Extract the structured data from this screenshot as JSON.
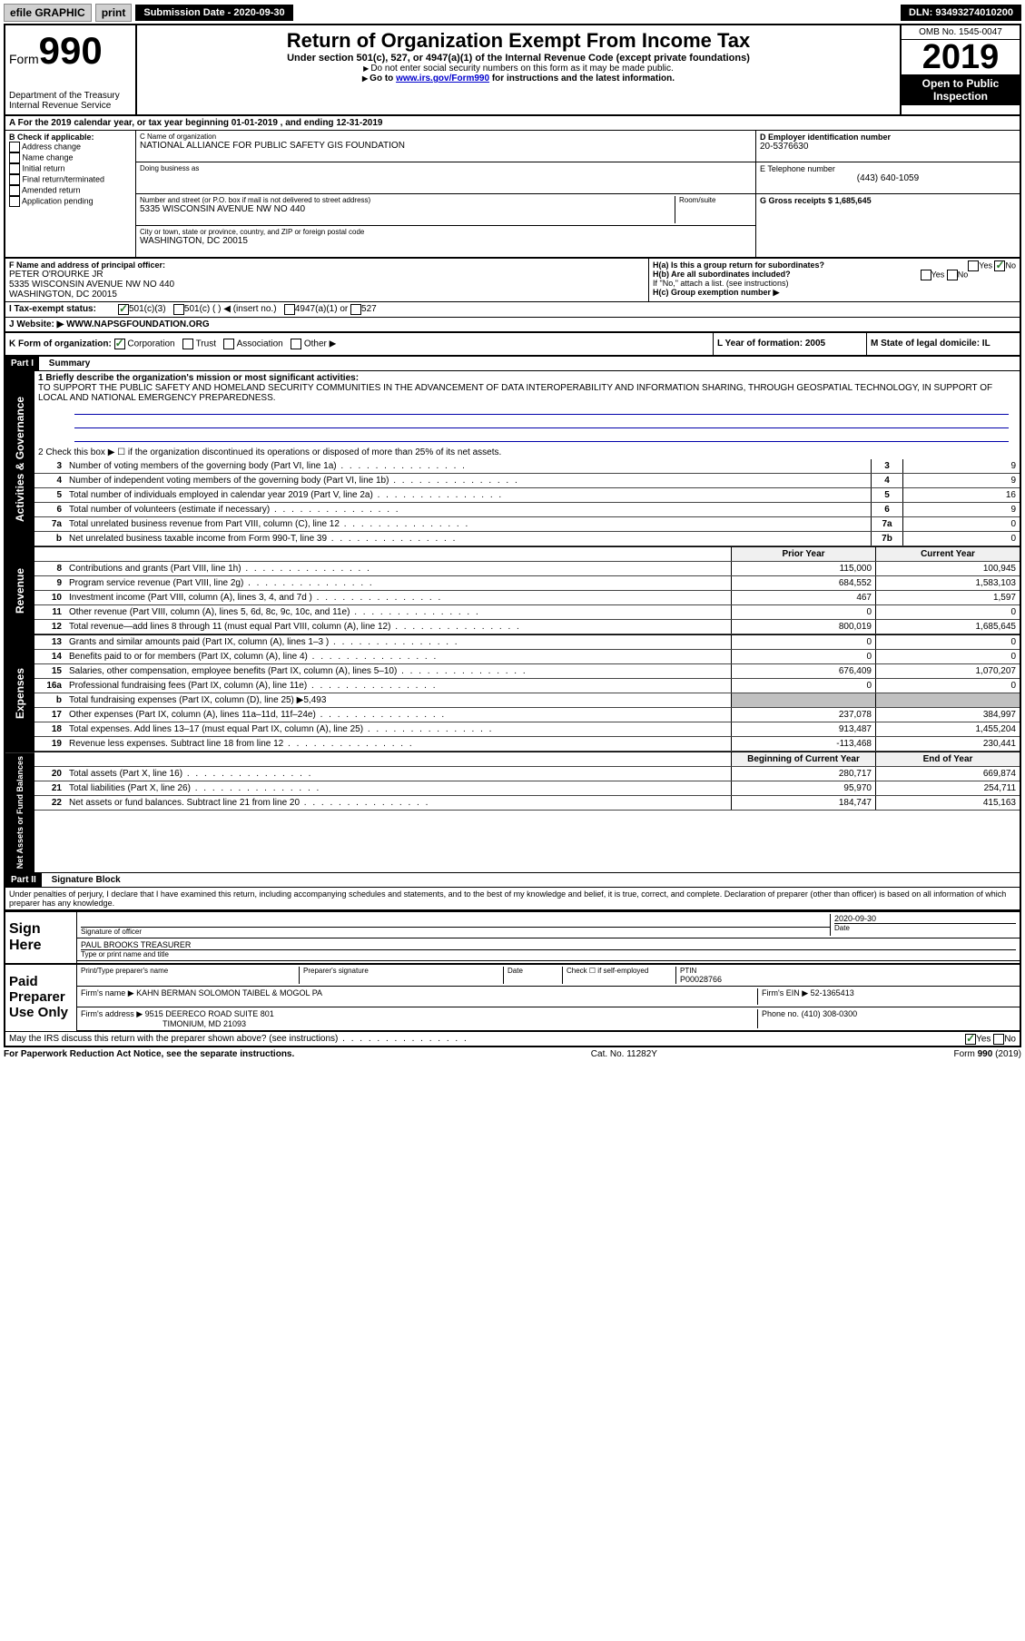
{
  "toolbar": {
    "efile": "efile GRAPHIC",
    "print": "print",
    "submission_label": "Submission Date - 2020-09-30",
    "dln_label": "DLN: 93493274010200"
  },
  "header": {
    "form_label": "Form",
    "form_number": "990",
    "dept": "Department of the Treasury\nInternal Revenue Service",
    "title": "Return of Organization Exempt From Income Tax",
    "subtitle1": "Under section 501(c), 527, or 4947(a)(1) of the Internal Revenue Code (except private foundations)",
    "subtitle2": "Do not enter social security numbers on this form as it may be made public.",
    "subtitle3_pre": "Go to ",
    "subtitle3_link": "www.irs.gov/Form990",
    "subtitle3_post": " for instructions and the latest information.",
    "omb": "OMB No. 1545-0047",
    "year": "2019",
    "open_public": "Open to Public Inspection"
  },
  "row_a": "A For the 2019 calendar year, or tax year beginning 01-01-2019   , and ending 12-31-2019",
  "section_b": {
    "label": "B Check if applicable:",
    "opts": [
      "Address change",
      "Name change",
      "Initial return",
      "Final return/terminated",
      "Amended return",
      "Application pending"
    ]
  },
  "section_c": {
    "name_label": "C Name of organization",
    "name": "NATIONAL ALLIANCE FOR PUBLIC SAFETY GIS FOUNDATION",
    "dba_label": "Doing business as",
    "addr_label": "Number and street (or P.O. box if mail is not delivered to street address)",
    "room_label": "Room/suite",
    "addr": "5335 WISCONSIN AVENUE NW NO 440",
    "city_label": "City or town, state or province, country, and ZIP or foreign postal code",
    "city": "WASHINGTON, DC  20015"
  },
  "section_d": {
    "ein_label": "D Employer identification number",
    "ein": "20-5376630",
    "phone_label": "E Telephone number",
    "phone": "(443) 640-1059",
    "gross_label": "G Gross receipts $ 1,685,645"
  },
  "section_f": {
    "label": "F  Name and address of principal officer:",
    "name": "PETER O'ROURKE JR",
    "addr1": "5335 WISCONSIN AVENUE NW NO 440",
    "addr2": "WASHINGTON, DC  20015"
  },
  "section_h": {
    "a": "H(a)  Is this a group return for subordinates?",
    "b": "H(b)  Are all subordinates included?",
    "b_note": "If \"No,\" attach a list. (see instructions)",
    "c": "H(c)  Group exemption number ▶"
  },
  "tax_status": {
    "label": "I   Tax-exempt status:",
    "opt1": "501(c)(3)",
    "opt2": "501(c) (  ) ◀ (insert no.)",
    "opt3": "4947(a)(1) or",
    "opt4": "527"
  },
  "website": {
    "label": "J   Website: ▶",
    "value": "WWW.NAPSGFOUNDATION.ORG"
  },
  "section_k": {
    "label": "K Form of organization:",
    "opts": [
      "Corporation",
      "Trust",
      "Association",
      "Other ▶"
    ]
  },
  "section_l": "L Year of formation: 2005",
  "section_m": "M State of legal domicile: IL",
  "part1": {
    "header": "Part I",
    "title": "Summary",
    "line1_label": "1   Briefly describe the organization's mission or most significant activities:",
    "line1_text": "TO SUPPORT THE PUBLIC SAFETY AND HOMELAND SECURITY COMMUNITIES IN THE ADVANCEMENT OF DATA INTEROPERABILITY AND INFORMATION SHARING, THROUGH GEOSPATIAL TECHNOLOGY, IN SUPPORT OF LOCAL AND NATIONAL EMERGENCY PREPAREDNESS.",
    "line2": "2   Check this box ▶ ☐  if the organization discontinued its operations or disposed of more than 25% of its net assets.",
    "lines_ag": [
      {
        "num": "3",
        "label": "Number of voting members of the governing body (Part VI, line 1a)",
        "box": "3",
        "val": "9"
      },
      {
        "num": "4",
        "label": "Number of independent voting members of the governing body (Part VI, line 1b)",
        "box": "4",
        "val": "9"
      },
      {
        "num": "5",
        "label": "Total number of individuals employed in calendar year 2019 (Part V, line 2a)",
        "box": "5",
        "val": "16"
      },
      {
        "num": "6",
        "label": "Total number of volunteers (estimate if necessary)",
        "box": "6",
        "val": "9"
      },
      {
        "num": "7a",
        "label": "Total unrelated business revenue from Part VIII, column (C), line 12",
        "box": "7a",
        "val": "0"
      },
      {
        "num": "b",
        "label": "Net unrelated business taxable income from Form 990-T, line 39",
        "box": "7b",
        "val": "0"
      }
    ],
    "col_prior": "Prior Year",
    "col_current": "Current Year",
    "revenue_tab": "Revenue",
    "revenue": [
      {
        "num": "8",
        "label": "Contributions and grants (Part VIII, line 1h)",
        "prior": "115,000",
        "current": "100,945"
      },
      {
        "num": "9",
        "label": "Program service revenue (Part VIII, line 2g)",
        "prior": "684,552",
        "current": "1,583,103"
      },
      {
        "num": "10",
        "label": "Investment income (Part VIII, column (A), lines 3, 4, and 7d )",
        "prior": "467",
        "current": "1,597"
      },
      {
        "num": "11",
        "label": "Other revenue (Part VIII, column (A), lines 5, 6d, 8c, 9c, 10c, and 11e)",
        "prior": "0",
        "current": "0"
      },
      {
        "num": "12",
        "label": "Total revenue—add lines 8 through 11 (must equal Part VIII, column (A), line 12)",
        "prior": "800,019",
        "current": "1,685,645"
      }
    ],
    "expenses_tab": "Expenses",
    "expenses": [
      {
        "num": "13",
        "label": "Grants and similar amounts paid (Part IX, column (A), lines 1–3 )",
        "prior": "0",
        "current": "0"
      },
      {
        "num": "14",
        "label": "Benefits paid to or for members (Part IX, column (A), line 4)",
        "prior": "0",
        "current": "0"
      },
      {
        "num": "15",
        "label": "Salaries, other compensation, employee benefits (Part IX, column (A), lines 5–10)",
        "prior": "676,409",
        "current": "1,070,207"
      },
      {
        "num": "16a",
        "label": "Professional fundraising fees (Part IX, column (A), line 11e)",
        "prior": "0",
        "current": "0"
      },
      {
        "num": "b",
        "label": "Total fundraising expenses (Part IX, column (D), line 25) ▶5,493",
        "prior": "",
        "current": "",
        "shaded": true
      },
      {
        "num": "17",
        "label": "Other expenses (Part IX, column (A), lines 11a–11d, 11f–24e)",
        "prior": "237,078",
        "current": "384,997"
      },
      {
        "num": "18",
        "label": "Total expenses. Add lines 13–17 (must equal Part IX, column (A), line 25)",
        "prior": "913,487",
        "current": "1,455,204"
      },
      {
        "num": "19",
        "label": "Revenue less expenses. Subtract line 18 from line 12",
        "prior": "-113,468",
        "current": "230,441"
      }
    ],
    "net_tab": "Net Assets or Fund Balances",
    "col_begin": "Beginning of Current Year",
    "col_end": "End of Year",
    "net": [
      {
        "num": "20",
        "label": "Total assets (Part X, line 16)",
        "prior": "280,717",
        "current": "669,874"
      },
      {
        "num": "21",
        "label": "Total liabilities (Part X, line 26)",
        "prior": "95,970",
        "current": "254,711"
      },
      {
        "num": "22",
        "label": "Net assets or fund balances. Subtract line 21 from line 20",
        "prior": "184,747",
        "current": "415,163"
      }
    ],
    "ag_tab": "Activities & Governance"
  },
  "part2": {
    "header": "Part II",
    "title": "Signature Block",
    "declaration": "Under penalties of perjury, I declare that I have examined this return, including accompanying schedules and statements, and to the best of my knowledge and belief, it is true, correct, and complete. Declaration of preparer (other than officer) is based on all information of which preparer has any knowledge.",
    "sign_here": "Sign Here",
    "sig_officer": "Signature of officer",
    "sig_date": "2020-09-30",
    "date_label": "Date",
    "officer_name": "PAUL BROOKS  TREASURER",
    "type_label": "Type or print name and title",
    "paid_label": "Paid Preparer Use Only",
    "prep_name_label": "Print/Type preparer's name",
    "prep_sig_label": "Preparer's signature",
    "check_self": "Check ☐ if self-employed",
    "ptin_label": "PTIN",
    "ptin": "P00028766",
    "firm_name_label": "Firm's name    ▶",
    "firm_name": "KAHN BERMAN SOLOMON TAIBEL & MOGOL PA",
    "firm_ein_label": "Firm's EIN ▶",
    "firm_ein": "52-1365413",
    "firm_addr_label": "Firm's address ▶",
    "firm_addr1": "9515 DEERECO ROAD SUITE 801",
    "firm_addr2": "TIMONIUM, MD  21093",
    "phone_label": "Phone no.",
    "phone": "(410) 308-0300",
    "discuss": "May the IRS discuss this return with the preparer shown above? (see instructions)"
  },
  "footer": {
    "left": "For Paperwork Reduction Act Notice, see the separate instructions.",
    "center": "Cat. No. 11282Y",
    "right": "Form 990 (2019)"
  }
}
